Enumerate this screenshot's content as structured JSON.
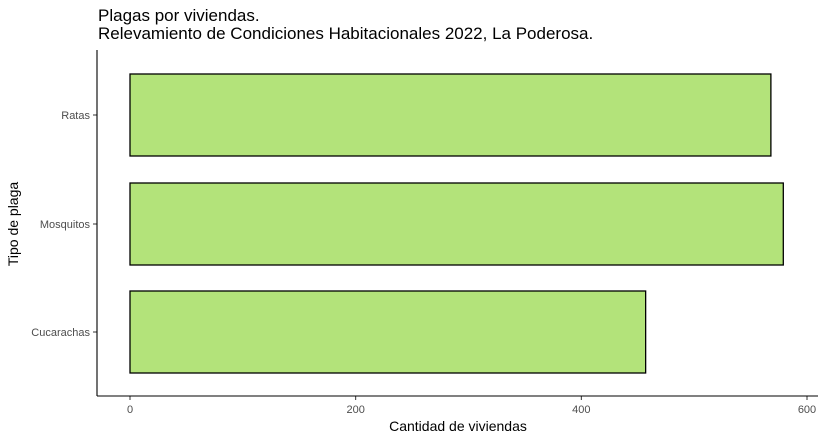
{
  "chart_data": {
    "type": "bar",
    "orientation": "horizontal",
    "title": "Plagas por viviendas.",
    "subtitle": "Relevamiento de Condiciones Habitacionales 2022, La Poderosa.",
    "xlabel": "Cantidad de viviendas",
    "ylabel": "Tipo de plaga",
    "categories": [
      "Cucarachas",
      "Mosquitos",
      "Ratas"
    ],
    "values": [
      457,
      579,
      568
    ],
    "xlim": [
      0,
      600
    ],
    "xticks": [
      "0",
      "200",
      "400",
      "600"
    ],
    "grid": false,
    "legend": "none",
    "bar_fill": "#b3e37a",
    "bar_stroke": "#000000"
  }
}
